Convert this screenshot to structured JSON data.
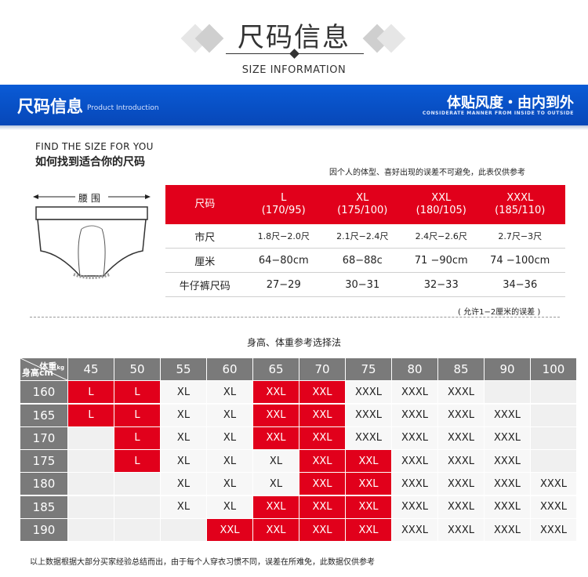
{
  "header": {
    "title_cn": "尺码信息",
    "title_en": "SIZE INFORMATION"
  },
  "banner": {
    "title": "尺码信息",
    "subtitle": "Product Introduction",
    "right_title": "体贴风度・由内到外",
    "right_sub": "CONSIDERATE MANNER FROM INSIDE TO OUTSIDE",
    "color": "#0a5bd6"
  },
  "find": {
    "en": "FIND THE SIZE FOR YOU",
    "cn": "如何找到适合你的尺码",
    "disclaimer": "因个人的体型、喜好出现的误差不可避免，此表仅供参考"
  },
  "diagram": {
    "waist_label": "腰 围"
  },
  "size_table": {
    "header_label": "尺码",
    "sizes": [
      {
        "name": "L",
        "spec": "(170/95)"
      },
      {
        "name": "XL",
        "spec": "(175/100)"
      },
      {
        "name": "XXL",
        "spec": "(180/105)"
      },
      {
        "name": "XXXL",
        "spec": "(185/110)"
      }
    ],
    "rows": [
      {
        "label": "市尺",
        "values": [
          "1.8尺−2.0尺",
          "2.1尺−2.4尺",
          "2.4尺−2.6尺",
          "2.7尺−3尺"
        ]
      },
      {
        "label": "厘米",
        "values": [
          "64−80cm",
          "68−88c",
          "71 −90cm",
          "74 −100cm"
        ]
      },
      {
        "label": "牛仔裤尺码",
        "values": [
          "27−29",
          "30−31",
          "32−33",
          "34−36"
        ]
      }
    ],
    "allowance": "( 允许1−2厘米的误差 )",
    "accent": "#e1001b"
  },
  "reference": {
    "title": "身高、体重参考选择法",
    "corner_weight": "体重",
    "corner_weight_unit": "kg",
    "corner_height": "身高cm",
    "weights": [
      "45",
      "50",
      "55",
      "60",
      "65",
      "70",
      "75",
      "80",
      "85",
      "90",
      "100"
    ],
    "rows": [
      {
        "height": "160",
        "cells": [
          [
            "L",
            "red"
          ],
          [
            "L",
            "red"
          ],
          [
            "XL",
            "white"
          ],
          [
            "XL",
            "white"
          ],
          [
            "XXL",
            "red"
          ],
          [
            "XXL",
            "red"
          ],
          [
            "XXXL",
            "white"
          ],
          [
            "XXXL",
            "white"
          ],
          [
            "XXXL",
            "white"
          ],
          [
            "",
            "empty"
          ],
          [
            "",
            "empty"
          ]
        ]
      },
      {
        "height": "165",
        "cells": [
          [
            "L",
            "red"
          ],
          [
            "L",
            "red"
          ],
          [
            "XL",
            "white"
          ],
          [
            "XL",
            "white"
          ],
          [
            "XXL",
            "red"
          ],
          [
            "XXL",
            "red"
          ],
          [
            "XXXL",
            "white"
          ],
          [
            "XXXL",
            "white"
          ],
          [
            "XXXL",
            "white"
          ],
          [
            "XXXL",
            "white"
          ],
          [
            "",
            "empty"
          ]
        ]
      },
      {
        "height": "170",
        "cells": [
          [
            "",
            "empty"
          ],
          [
            "L",
            "red"
          ],
          [
            "XL",
            "white"
          ],
          [
            "XL",
            "white"
          ],
          [
            "XXL",
            "red"
          ],
          [
            "XXL",
            "red"
          ],
          [
            "XXXL",
            "white"
          ],
          [
            "XXXL",
            "white"
          ],
          [
            "XXXL",
            "white"
          ],
          [
            "XXXL",
            "white"
          ],
          [
            "",
            "empty"
          ]
        ]
      },
      {
        "height": "175",
        "cells": [
          [
            "",
            "empty"
          ],
          [
            "L",
            "red"
          ],
          [
            "XL",
            "white"
          ],
          [
            "XL",
            "white"
          ],
          [
            "XL",
            "white"
          ],
          [
            "XXL",
            "red"
          ],
          [
            "XXL",
            "red"
          ],
          [
            "XXXL",
            "white"
          ],
          [
            "XXXL",
            "white"
          ],
          [
            "XXXL",
            "white"
          ],
          [
            "",
            "empty"
          ]
        ]
      },
      {
        "height": "180",
        "cells": [
          [
            "",
            "empty"
          ],
          [
            "",
            "empty"
          ],
          [
            "XL",
            "white"
          ],
          [
            "XL",
            "white"
          ],
          [
            "XL",
            "white"
          ],
          [
            "XXL",
            "red"
          ],
          [
            "XXL",
            "red"
          ],
          [
            "XXXL",
            "white"
          ],
          [
            "XXXL",
            "white"
          ],
          [
            "XXXL",
            "white"
          ],
          [
            "XXXL",
            "white"
          ]
        ]
      },
      {
        "height": "185",
        "cells": [
          [
            "",
            "empty"
          ],
          [
            "",
            "empty"
          ],
          [
            "XL",
            "white"
          ],
          [
            "XL",
            "white"
          ],
          [
            "XXL",
            "red"
          ],
          [
            "XXL",
            "red"
          ],
          [
            "XXL",
            "red"
          ],
          [
            "XXXL",
            "white"
          ],
          [
            "XXXL",
            "white"
          ],
          [
            "XXXL",
            "white"
          ],
          [
            "XXXL",
            "white"
          ]
        ]
      },
      {
        "height": "190",
        "cells": [
          [
            "",
            "empty"
          ],
          [
            "",
            "empty"
          ],
          [
            "",
            "empty"
          ],
          [
            "XXL",
            "red"
          ],
          [
            "XXL",
            "red"
          ],
          [
            "XXL",
            "red"
          ],
          [
            "XXL",
            "red"
          ],
          [
            "XXXL",
            "white"
          ],
          [
            "XXXL",
            "white"
          ],
          [
            "XXXL",
            "white"
          ],
          [
            "XXXL",
            "white"
          ]
        ]
      }
    ],
    "note": "以上数据根据大部分买家经验总结而出，由于每个人穿衣习惯不同，误差在所难免，此数据仅供参考"
  }
}
